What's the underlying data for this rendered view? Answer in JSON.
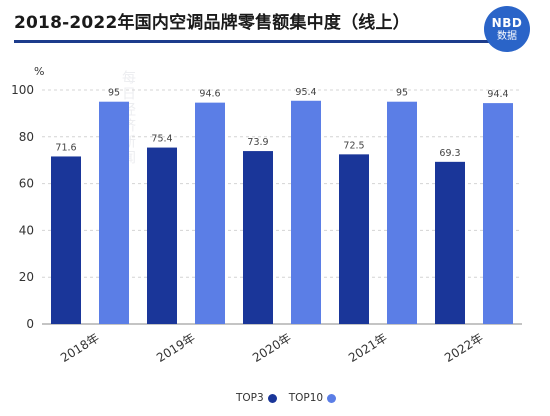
{
  "title": "2018-2022年国内空调品牌零售额集中度（线上）",
  "logo": {
    "line1": "NBD",
    "line2": "数据",
    "color": "#2a64c8"
  },
  "watermark": "每日经济新闻",
  "chart_data": {
    "type": "bar",
    "title": "2018-2022年国内空调品牌零售额集中度（线上）",
    "ylabel": "%",
    "xlabel": "",
    "ylim": [
      0,
      100
    ],
    "yticks": [
      0,
      20,
      40,
      60,
      80,
      100
    ],
    "grid": true,
    "legend_position": "bottom",
    "categories": [
      "2018年",
      "2019年",
      "2020年",
      "2021年",
      "2022年"
    ],
    "series": [
      {
        "name": "TOP3",
        "values": [
          71.6,
          75.4,
          73.9,
          72.5,
          69.3
        ],
        "color": "#1a3699"
      },
      {
        "name": "TOP10",
        "values": [
          95,
          94.6,
          95.4,
          95,
          94.4
        ],
        "color": "#5b7ee6"
      }
    ]
  }
}
